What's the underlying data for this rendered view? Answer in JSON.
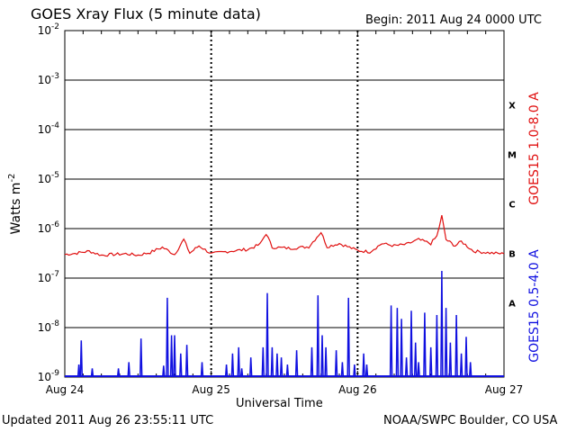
{
  "header": {
    "title": "GOES Xray Flux (5 minute data)",
    "begin": "Begin:  2011 Aug 24 0000 UTC"
  },
  "footer": {
    "updated": "Updated 2011 Aug 26 23:55:11 UTC",
    "credit": "NOAA/SWPC Boulder, CO USA"
  },
  "colors": {
    "long": "#e01010",
    "short": "#1010e0"
  },
  "chart_data": {
    "type": "line",
    "title": "GOES Xray Flux (5 minute data)",
    "xlabel": "Universal Time",
    "ylabel": "Watts m^-2",
    "yscale": "log",
    "ylim": [
      1e-09,
      0.01
    ],
    "grid": true,
    "x_ticks": [
      "Aug 24",
      "Aug 25",
      "Aug 26",
      "Aug 27"
    ],
    "xlim_hours": [
      0,
      72
    ],
    "y_ticks": [
      {
        "base": "10",
        "exp": "-9",
        "value": 1e-09
      },
      {
        "base": "10",
        "exp": "-8",
        "value": 1e-08
      },
      {
        "base": "10",
        "exp": "-7",
        "value": 1e-07
      },
      {
        "base": "10",
        "exp": "-6",
        "value": 1e-06
      },
      {
        "base": "10",
        "exp": "-5",
        "value": 1e-05
      },
      {
        "base": "10",
        "exp": "-4",
        "value": 0.0001
      },
      {
        "base": "10",
        "exp": "-3",
        "value": 0.001
      },
      {
        "base": "10",
        "exp": "-2",
        "value": 0.01
      }
    ],
    "flare_classes": [
      {
        "label": "A",
        "value": 1e-08
      },
      {
        "label": "B",
        "value": 1e-07
      },
      {
        "label": "C",
        "value": 1e-06
      },
      {
        "label": "M",
        "value": 1e-05
      },
      {
        "label": "X",
        "value": 0.0001
      }
    ],
    "series": [
      {
        "name": "GOES15 1.0-8.0 A",
        "color": "#e01010",
        "baseline": 3e-07,
        "points": [
          [
            0,
            3e-07
          ],
          [
            2,
            3.2e-07
          ],
          [
            4,
            3.5e-07
          ],
          [
            6,
            2.9e-07
          ],
          [
            8,
            3e-07
          ],
          [
            10,
            3.1e-07
          ],
          [
            12,
            2.9e-07
          ],
          [
            14,
            3.3e-07
          ],
          [
            16,
            4.2e-07
          ],
          [
            18,
            3e-07
          ],
          [
            19.5,
            6e-07
          ],
          [
            20.5,
            3.2e-07
          ],
          [
            22,
            4.5e-07
          ],
          [
            24,
            3.1e-07
          ],
          [
            27,
            3.5e-07
          ],
          [
            30,
            3.8e-07
          ],
          [
            32,
            4.8e-07
          ],
          [
            33,
            8e-07
          ],
          [
            34,
            4.2e-07
          ],
          [
            37,
            4e-07
          ],
          [
            40,
            4.3e-07
          ],
          [
            42,
            8.5e-07
          ],
          [
            43,
            4.3e-07
          ],
          [
            45,
            5e-07
          ],
          [
            48,
            3.6e-07
          ],
          [
            50,
            3.4e-07
          ],
          [
            52,
            5e-07
          ],
          [
            54,
            4.5e-07
          ],
          [
            56,
            4.8e-07
          ],
          [
            58,
            6e-07
          ],
          [
            60,
            5e-07
          ],
          [
            61,
            7e-07
          ],
          [
            61.8,
            1.8e-06
          ],
          [
            62.5,
            6e-07
          ],
          [
            64,
            4.5e-07
          ],
          [
            65,
            5.5e-07
          ],
          [
            67,
            3.5e-07
          ],
          [
            70,
            3.2e-07
          ],
          [
            72,
            3.1e-07
          ]
        ]
      },
      {
        "name": "GOES15 0.5-4.0 A",
        "color": "#1010e0",
        "baseline": 1e-09,
        "spikes": [
          [
            2.3,
            1.8e-09
          ],
          [
            2.7,
            5.5e-09
          ],
          [
            4.5,
            1.5e-09
          ],
          [
            8.8,
            1.5e-09
          ],
          [
            10.5,
            2e-09
          ],
          [
            12.5,
            6e-09
          ],
          [
            16.2,
            1.7e-09
          ],
          [
            16.8,
            4e-08
          ],
          [
            17.5,
            7e-09
          ],
          [
            18.0,
            7e-09
          ],
          [
            19.0,
            3e-09
          ],
          [
            20.0,
            4.5e-09
          ],
          [
            22.5,
            2e-09
          ],
          [
            26.5,
            1.8e-09
          ],
          [
            27.5,
            3e-09
          ],
          [
            28.5,
            4e-09
          ],
          [
            29.0,
            1.5e-09
          ],
          [
            30.5,
            2.5e-09
          ],
          [
            32.5,
            4e-09
          ],
          [
            33.2,
            5e-08
          ],
          [
            34.0,
            4e-09
          ],
          [
            34.8,
            3e-09
          ],
          [
            35.5,
            2.5e-09
          ],
          [
            36.5,
            1.8e-09
          ],
          [
            38.0,
            3.5e-09
          ],
          [
            40.5,
            4e-09
          ],
          [
            41.5,
            4.5e-08
          ],
          [
            42.2,
            7e-09
          ],
          [
            42.8,
            4e-09
          ],
          [
            44.5,
            3.5e-09
          ],
          [
            45.5,
            2e-09
          ],
          [
            46.5,
            4e-08
          ],
          [
            47.5,
            1.8e-09
          ],
          [
            49.0,
            3e-09
          ],
          [
            49.5,
            1.8e-09
          ],
          [
            53.5,
            2.8e-08
          ],
          [
            54.5,
            2.5e-08
          ],
          [
            55.2,
            1.5e-08
          ],
          [
            56.0,
            2.5e-09
          ],
          [
            56.8,
            2.2e-08
          ],
          [
            57.5,
            5e-09
          ],
          [
            58.0,
            2e-09
          ],
          [
            59.0,
            2e-08
          ],
          [
            60.0,
            4e-09
          ],
          [
            61.0,
            1.8e-08
          ],
          [
            61.8,
            1.4e-07
          ],
          [
            62.5,
            2.5e-08
          ],
          [
            63.2,
            5e-09
          ],
          [
            64.2,
            1.8e-08
          ],
          [
            65.0,
            3e-09
          ],
          [
            65.8,
            6.5e-09
          ],
          [
            66.5,
            2e-09
          ]
        ]
      }
    ]
  }
}
